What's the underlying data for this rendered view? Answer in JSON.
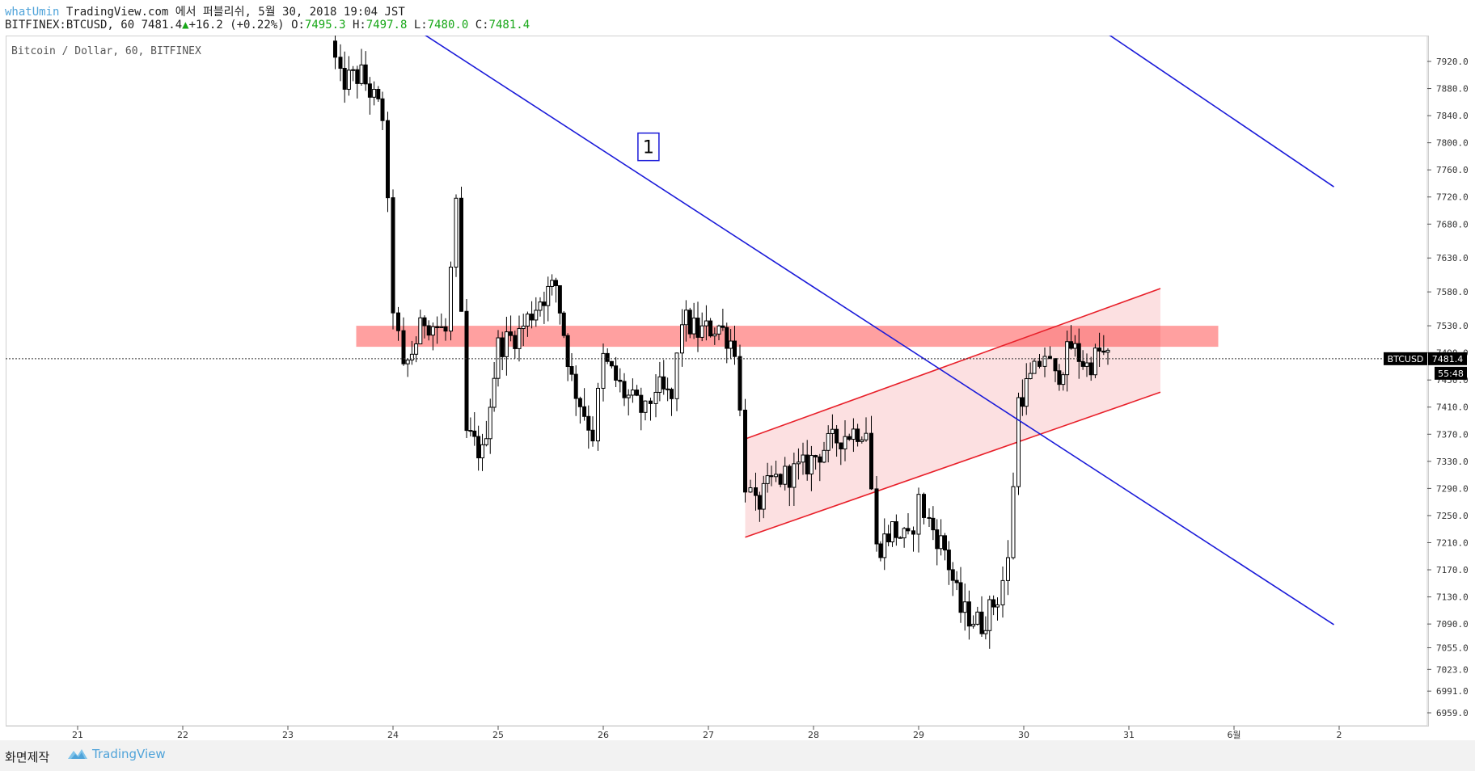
{
  "header": {
    "author": "whatUmin",
    "publish_text": "TradingView.com 에서 퍼블리쉬, 5월 30, 2018 19:04 JST",
    "symbol": "BITFINEX:BTCUSD, 60",
    "last": "7481.4",
    "change": "+16.2 (+0.22%)",
    "open_label": "O:",
    "open": "7495.3",
    "high_label": "H:",
    "high": "7497.8",
    "low_label": "L:",
    "low": "7480.0",
    "close_label": "C:",
    "close": "7481.4"
  },
  "chart": {
    "subtitle": "Bitcoin / Dollar, 60, BITFINEX",
    "annotation_label": "1",
    "price_tag_symbol": "BTCUSD",
    "price_tag_value": "7481.4",
    "countdown": "55:48",
    "colors": {
      "trendline": "#1b1bd9",
      "channel": "#e8202a",
      "zone": "#ff8080",
      "candle": "#000000"
    }
  },
  "chart_data": {
    "type": "candlestick",
    "title": "Bitcoin / Dollar, 60, BITFINEX",
    "y_ticks": [
      7920.0,
      7880.0,
      7840.0,
      7800.0,
      7760.0,
      7720.0,
      7680.0,
      7630.0,
      7580.0,
      7530.0,
      7490.0,
      7450.0,
      7410.0,
      7370.0,
      7330.0,
      7290.0,
      7250.0,
      7210.0,
      7170.0,
      7130.0,
      7090.0,
      7055.0,
      7023.0,
      6991.0,
      6959.0
    ],
    "x_ticks": [
      "21",
      "22",
      "23",
      "24",
      "25",
      "26",
      "27",
      "28",
      "29",
      "30",
      "31",
      "6월",
      "2"
    ],
    "ylim": [
      6930,
      7960
    ],
    "last_price": 7481.4,
    "candle_waypoints": [
      {
        "day": 23.4,
        "price": 7950
      },
      {
        "day": 23.5,
        "price": 7890
      },
      {
        "day": 23.7,
        "price": 7900
      },
      {
        "day": 23.9,
        "price": 7840
      },
      {
        "day": 24.0,
        "price": 7560
      },
      {
        "day": 24.1,
        "price": 7460
      },
      {
        "day": 24.3,
        "price": 7540
      },
      {
        "day": 24.5,
        "price": 7520
      },
      {
        "day": 24.6,
        "price": 7700
      },
      {
        "day": 24.7,
        "price": 7370
      },
      {
        "day": 24.85,
        "price": 7340
      },
      {
        "day": 25.0,
        "price": 7500
      },
      {
        "day": 25.2,
        "price": 7520
      },
      {
        "day": 25.4,
        "price": 7570
      },
      {
        "day": 25.55,
        "price": 7590
      },
      {
        "day": 25.7,
        "price": 7450
      },
      {
        "day": 25.9,
        "price": 7370
      },
      {
        "day": 26.0,
        "price": 7480
      },
      {
        "day": 26.2,
        "price": 7430
      },
      {
        "day": 26.4,
        "price": 7400
      },
      {
        "day": 26.5,
        "price": 7440
      },
      {
        "day": 26.65,
        "price": 7420
      },
      {
        "day": 26.75,
        "price": 7540
      },
      {
        "day": 26.9,
        "price": 7520
      },
      {
        "day": 27.1,
        "price": 7530
      },
      {
        "day": 27.25,
        "price": 7500
      },
      {
        "day": 27.35,
        "price": 7300
      },
      {
        "day": 27.45,
        "price": 7260
      },
      {
        "day": 27.6,
        "price": 7300
      },
      {
        "day": 27.9,
        "price": 7320
      },
      {
        "day": 28.1,
        "price": 7350
      },
      {
        "day": 28.3,
        "price": 7370
      },
      {
        "day": 28.5,
        "price": 7380
      },
      {
        "day": 28.6,
        "price": 7200
      },
      {
        "day": 28.75,
        "price": 7230
      },
      {
        "day": 28.9,
        "price": 7210
      },
      {
        "day": 29.0,
        "price": 7270
      },
      {
        "day": 29.1,
        "price": 7240
      },
      {
        "day": 29.25,
        "price": 7200
      },
      {
        "day": 29.4,
        "price": 7110
      },
      {
        "day": 29.6,
        "price": 7090
      },
      {
        "day": 29.75,
        "price": 7130
      },
      {
        "day": 29.85,
        "price": 7180
      },
      {
        "day": 29.95,
        "price": 7420
      },
      {
        "day": 30.1,
        "price": 7460
      },
      {
        "day": 30.2,
        "price": 7490
      },
      {
        "day": 30.3,
        "price": 7450
      },
      {
        "day": 30.45,
        "price": 7500
      },
      {
        "day": 30.6,
        "price": 7470
      },
      {
        "day": 30.72,
        "price": 7490
      },
      {
        "day": 30.8,
        "price": 7481.4
      }
    ],
    "resistance_zone": {
      "from_day": 23.65,
      "to_day": 31.85,
      "price_low": 7499,
      "price_high": 7530
    },
    "trendlines": [
      {
        "from": {
          "day": 23.3,
          "price": 8060
        },
        "to": {
          "day": 32.95,
          "price": 7089
        }
      },
      {
        "from": {
          "day": 29.85,
          "price": 8060
        },
        "to": {
          "day": 32.95,
          "price": 7735
        }
      }
    ],
    "channel": {
      "upper": {
        "from": {
          "day": 27.35,
          "price": 7363
        },
        "to": {
          "day": 31.3,
          "price": 7585
        }
      },
      "lower": {
        "from": {
          "day": 27.35,
          "price": 7218
        },
        "to": {
          "day": 31.3,
          "price": 7432
        }
      }
    },
    "annotation": {
      "day": 26.43,
      "price": 7794
    },
    "grid": false
  }
}
